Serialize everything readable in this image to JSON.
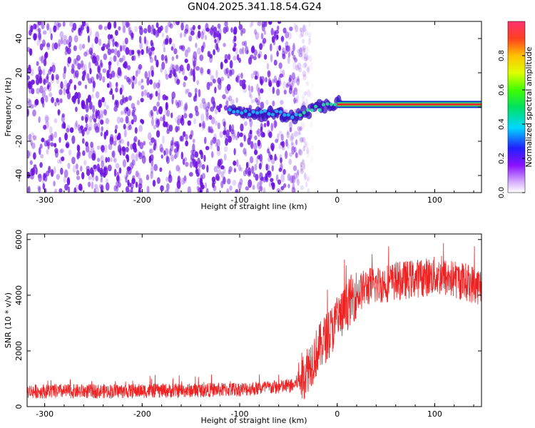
{
  "title": "GN04.2025.341.18.54.G24",
  "colors": {
    "snr_line": "#ee2222",
    "scatter_base": "#6a10e0",
    "ridge_core": "#e83030",
    "frame": "#000000"
  },
  "chart_data": [
    {
      "id": "spectrogram",
      "type": "heatmap",
      "title": "GN04.2025.341.18.54.G24",
      "xlabel": "Height of straight line (km)",
      "ylabel": "Frequency (Hz)",
      "xlim": [
        -318,
        148
      ],
      "ylim": [
        -50,
        50
      ],
      "xticks": [
        -300,
        -200,
        -100,
        0,
        100
      ],
      "yticks": [
        -40,
        -20,
        0,
        20,
        40
      ],
      "xtick_labels": [
        "-300",
        "-200",
        "-100",
        "0",
        "100"
      ],
      "ytick_labels": [
        "-40",
        "-20",
        "0",
        "20",
        "40"
      ],
      "noise_region_x": [
        -318,
        -50
      ],
      "ridge": {
        "x": [
          -110,
          -95,
          -80,
          -65,
          -55,
          -45,
          -38,
          -30,
          -22,
          -15,
          -8,
          0,
          20,
          60,
          100,
          148
        ],
        "y": [
          -2,
          -3,
          -4,
          -3,
          -5,
          -6,
          -4,
          -3,
          -1,
          0,
          1,
          2,
          1.5,
          1.5,
          1.5,
          1.5
        ]
      }
    },
    {
      "id": "colorbar",
      "type": "colorbar",
      "label": "Normalized spectral amplitude",
      "range": [
        0,
        1
      ],
      "ticks": [
        0.0,
        0.2,
        0.4,
        0.6,
        0.8
      ],
      "tick_labels": [
        "0.0",
        "0.2",
        "0.4",
        "0.6",
        "0.8"
      ]
    },
    {
      "id": "snr",
      "type": "line",
      "xlabel": "Height of straight line (km)",
      "ylabel": "SNR (10 * v/v)",
      "xlim": [
        -318,
        148
      ],
      "ylim": [
        0,
        6200
      ],
      "xticks": [
        -300,
        -200,
        -100,
        0,
        100
      ],
      "yticks": [
        0,
        2000,
        4000,
        6000
      ],
      "xtick_labels": [
        "-300",
        "-200",
        "-100",
        "0",
        "100"
      ],
      "ytick_labels": [
        "0",
        "2000",
        "4000",
        "6000"
      ],
      "series": [
        {
          "name": "SNR",
          "x": [
            -318,
            -250,
            -150,
            -100,
            -60,
            -45,
            -35,
            -25,
            -15,
            -5,
            5,
            15,
            30,
            60,
            100,
            130,
            148
          ],
          "y": [
            550,
            550,
            580,
            620,
            700,
            750,
            1100,
            1700,
            2300,
            2800,
            3300,
            3900,
            4300,
            4500,
            4700,
            4500,
            4300
          ]
        }
      ]
    }
  ]
}
